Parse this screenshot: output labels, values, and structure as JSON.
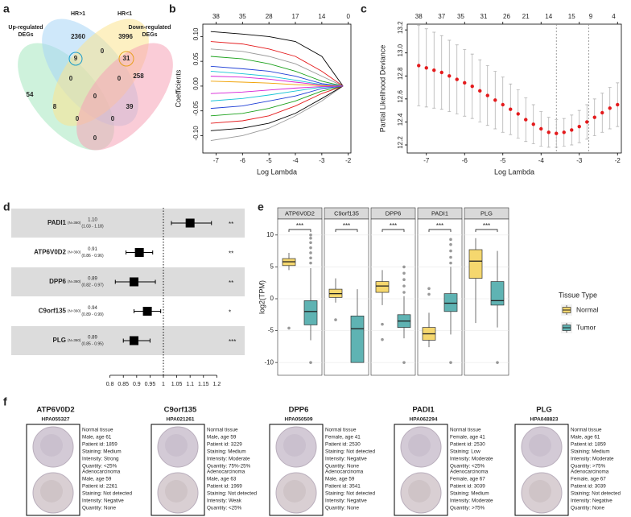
{
  "panel_labels": [
    "a",
    "b",
    "c",
    "d",
    "e",
    "f"
  ],
  "venn": {
    "sets": [
      {
        "name_lines": [
          "Up-regulated",
          "DEGs"
        ],
        "color": "#a6e8c0",
        "label_color": "#3cbf86"
      },
      {
        "name_lines": [
          "HR>1"
        ],
        "color": "#a8d6f5",
        "label_color": "#45a8e0"
      },
      {
        "name_lines": [
          "HR<1"
        ],
        "color": "#fbe48f",
        "label_color": "#f0a12a"
      },
      {
        "name_lines": [
          "Down-regulated",
          "DEGs"
        ],
        "color": "#f6a3b6",
        "label_color": "#e0508a"
      }
    ],
    "regions": [
      54,
      2360,
      3996,
      258,
      9,
      0,
      31,
      0,
      0,
      0,
      8,
      0,
      39,
      0,
      0
    ]
  },
  "chart_data": [
    {
      "type": "line",
      "x_label": "Log Lambda",
      "y_label": "Coefficients",
      "x": [
        -7.2,
        -6,
        -5,
        -4,
        -3,
        -2.2
      ],
      "series": [
        {
          "color": "#000000",
          "values": [
            0.11,
            0.105,
            0.1,
            0.09,
            0.06,
            0
          ]
        },
        {
          "color": "#e41a1c",
          "values": [
            0.09,
            0.085,
            0.075,
            0.06,
            0.03,
            0
          ]
        },
        {
          "color": "#999999",
          "values": [
            0.075,
            0.07,
            0.06,
            0.045,
            0.02,
            0
          ]
        },
        {
          "color": "#1ba11b",
          "values": [
            0.06,
            0.055,
            0.045,
            0.03,
            0.01,
            0
          ]
        },
        {
          "color": "#1f3fd6",
          "values": [
            0.04,
            0.035,
            0.03,
            0.02,
            0.005,
            0
          ]
        },
        {
          "color": "#17c3d6",
          "values": [
            0.03,
            0.025,
            0.02,
            0.012,
            0.003,
            0
          ]
        },
        {
          "color": "#d61fd6",
          "values": [
            0.02,
            0.018,
            0.014,
            0.008,
            0.002,
            0
          ]
        },
        {
          "color": "#f0a000",
          "values": [
            0.01,
            0.008,
            0.006,
            0.003,
            0.001,
            0
          ]
        },
        {
          "color": "#999999",
          "values": [
            -0.11,
            -0.1,
            -0.085,
            -0.06,
            -0.03,
            0
          ]
        },
        {
          "color": "#000000",
          "values": [
            -0.09,
            -0.085,
            -0.075,
            -0.055,
            -0.025,
            0
          ]
        },
        {
          "color": "#e41a1c",
          "values": [
            -0.075,
            -0.07,
            -0.06,
            -0.04,
            -0.015,
            0
          ]
        },
        {
          "color": "#1ba11b",
          "values": [
            -0.06,
            -0.055,
            -0.045,
            -0.03,
            -0.01,
            0
          ]
        },
        {
          "color": "#1f3fd6",
          "values": [
            -0.045,
            -0.04,
            -0.03,
            -0.02,
            -0.005,
            0
          ]
        },
        {
          "color": "#17c3d6",
          "values": [
            -0.03,
            -0.025,
            -0.018,
            -0.01,
            -0.002,
            0
          ]
        },
        {
          "color": "#d61fd6",
          "values": [
            -0.015,
            -0.012,
            -0.008,
            -0.004,
            -0.001,
            0
          ]
        }
      ],
      "xlim": [
        -7.5,
        -1.9
      ],
      "xticks": [
        -7,
        -6,
        -5,
        -4,
        -3,
        -2
      ],
      "top_labels": [
        38,
        35,
        28,
        17,
        14,
        0
      ],
      "ylim": [
        -0.135,
        0.125
      ],
      "yticks": [
        {
          "value": -0.1,
          "label": "-0.10"
        },
        -0.05,
        {
          "value": 0,
          "label": "0.00"
        },
        0.05,
        {
          "value": 0.1,
          "label": "0.10"
        }
      ]
    },
    {
      "type": "scatter",
      "x_label": "Log Lambda",
      "y_label": "Partial Likelihood Deviance",
      "color": "#e41a1c",
      "x": [
        -7.2,
        -7.0,
        -6.8,
        -6.6,
        -6.4,
        -6.2,
        -6.0,
        -5.8,
        -5.6,
        -5.4,
        -5.2,
        -5.0,
        -4.8,
        -4.6,
        -4.4,
        -4.2,
        -4.0,
        -3.8,
        -3.6,
        -3.4,
        -3.2,
        -3.0,
        -2.8,
        -2.6,
        -2.4,
        -2.2,
        -2.0
      ],
      "values": [
        12.89,
        12.87,
        12.85,
        12.83,
        12.8,
        12.77,
        12.74,
        12.71,
        12.67,
        12.63,
        12.59,
        12.55,
        12.51,
        12.47,
        12.42,
        12.38,
        12.34,
        12.31,
        12.3,
        12.31,
        12.33,
        12.36,
        12.4,
        12.44,
        12.48,
        12.52,
        12.55
      ],
      "errors": [
        0.35,
        0.34,
        0.33,
        0.32,
        0.31,
        0.3,
        0.29,
        0.28,
        0.27,
        0.26,
        0.25,
        0.24,
        0.22,
        0.21,
        0.19,
        0.17,
        0.15,
        0.13,
        0.12,
        0.12,
        0.13,
        0.14,
        0.15,
        0.16,
        0.17,
        0.18,
        0.19
      ],
      "xlim": [
        -7.5,
        -1.9
      ],
      "xticks": [
        -7,
        -6,
        -5,
        -4,
        -3,
        -2
      ],
      "ylim": [
        12.13,
        13.25
      ],
      "yticks": [
        12.2,
        12.4,
        12.6,
        12.8,
        {
          "value": 13,
          "label": "13.0"
        },
        13.2
      ],
      "top_labels": {
        "x": [
          -7.2,
          -6.6,
          -6.1,
          -5.5,
          -4.9,
          -4.4,
          -3.8,
          -3.2,
          -2.7,
          -2.1
        ],
        "labels": [
          38,
          37,
          35,
          31,
          26,
          21,
          14,
          15,
          9,
          4
        ]
      },
      "vlines": [
        -3.6,
        -2.75
      ]
    },
    {
      "type": "forest",
      "color": "#000000",
      "categories": [
        "PADI1",
        "ATP6V0D2",
        "DPP6",
        "C9orf135",
        "PLG"
      ],
      "n_labels": [
        "(N=360)",
        "(N=360)",
        "(N=360)",
        "(N=360)",
        "(N=360)"
      ],
      "values": [
        1.1,
        0.91,
        0.89,
        0.94,
        0.89
      ],
      "value_labels": [
        "1.10",
        "0.91",
        "0.89",
        "0.94",
        "0.89"
      ],
      "ci_low": [
        1.03,
        0.86,
        0.82,
        0.89,
        0.85
      ],
      "ci_high": [
        1.18,
        0.96,
        0.97,
        0.99,
        0.95
      ],
      "ci_labels": [
        "(1.03 - 1.18)",
        "(0.86 - 0.96)",
        "(0.82 - 0.97)",
        "(0.89 - 0.99)",
        "(0.85 - 0.95)"
      ],
      "significance": [
        "**",
        "**",
        "**",
        "*",
        "***"
      ],
      "reference": 1,
      "xlim": [
        0.78,
        1.22
      ],
      "xticks": [
        0.8,
        0.85,
        0.9,
        0.95,
        1,
        1.05,
        1.1,
        1.15,
        1.2
      ]
    },
    {
      "type": "box",
      "y_label": "log2(TPM)",
      "categories": [
        "ATP6V0D2",
        "C9orf135",
        "DPP6",
        "PADI1",
        "PLG"
      ],
      "significance": [
        "***",
        "***",
        "***",
        "***",
        "***"
      ],
      "legend_title": "Tissue Type",
      "legend": "right",
      "ylim": [
        -12,
        12.5
      ],
      "yticks": [
        -10,
        -5,
        0,
        5,
        10
      ],
      "series": [
        {
          "name": "Normal",
          "color": "#f5d76e",
          "boxes": [
            {
              "min": 4.5,
              "q1": 5.2,
              "median": 5.8,
              "q3": 6.3,
              "max": 7.2,
              "outliers": [
                -4.6
              ]
            },
            {
              "min": -0.6,
              "q1": 0.2,
              "median": 0.8,
              "q3": 1.5,
              "max": 3.2,
              "outliers": [
                -3.3
              ]
            },
            {
              "min": -1,
              "q1": 1,
              "median": 2,
              "q3": 2.7,
              "max": 4.5,
              "outliers": [
                -4,
                -6.4
              ]
            },
            {
              "min": -7.6,
              "q1": -6.5,
              "median": -5.5,
              "q3": -4.5,
              "max": -2.2,
              "outliers": [
                0.7,
                1.6
              ]
            },
            {
              "min": -3.8,
              "q1": 3.2,
              "median": 5.9,
              "q3": 7.7,
              "max": 9.5,
              "outliers": []
            }
          ]
        },
        {
          "name": "Tumor",
          "color": "#5fb3b3",
          "boxes": [
            {
              "min": -6.5,
              "q1": -4.1,
              "median": -2,
              "q3": -0.3,
              "max": 4.8,
              "outliers": [
                5.6,
                6.4,
                7.2,
                8,
                8.8,
                9.5,
                10,
                -10
              ]
            },
            {
              "min": -10,
              "q1": -10,
              "median": -4.7,
              "q3": -2.7,
              "max": 1.5,
              "outliers": []
            },
            {
              "min": -6.2,
              "q1": -4.5,
              "median": -3.5,
              "q3": -2.5,
              "max": 0.4,
              "outliers": [
                1,
                2,
                3,
                4,
                5,
                -10
              ]
            },
            {
              "min": -5.6,
              "q1": -2,
              "median": -0.7,
              "q3": 0.8,
              "max": 5,
              "outliers": [
                5.6,
                6.5,
                7.5,
                8.5,
                9.3,
                -10
              ]
            },
            {
              "min": -4.5,
              "q1": -1,
              "median": -0.3,
              "q3": 2.7,
              "max": 7.5,
              "outliers": [
                -10
              ]
            }
          ]
        }
      ]
    }
  ],
  "tissue_panels": [
    {
      "gene": "ATP6V0D2",
      "hpa": "HPA055327",
      "normal": [
        "Normal tissue",
        "Male, age 61",
        "Patient id: 1859",
        "Staining: Medium",
        "Intensity: Strong",
        "Quantity: <25%"
      ],
      "tumor": [
        "Adenocarcinoma",
        "Male, age 59",
        "Patient id: 2261",
        "Staining: Not detected",
        "Intensity: Negative",
        "Quantity: None"
      ]
    },
    {
      "gene": "C9orf135",
      "hpa": "HPA021261",
      "normal": [
        "Normal tissue",
        "Male, age 59",
        "Patient id: 3229",
        "Staining: Medium",
        "Intensity: Moderate",
        "Quantity: 75%-25%"
      ],
      "tumor": [
        "Adenocarcinoma",
        "Male, age 63",
        "Patient id: 1969",
        "Staining: Not detected",
        "Intensity: Weak",
        "Quantity: <25%"
      ]
    },
    {
      "gene": "DPP6",
      "hpa": "HPA050509",
      "normal": [
        "Normal tissue",
        "Female, age 41",
        "Patient id: 2530",
        "Staining: Not detected",
        "Intensity: Negative",
        "Quantity: None"
      ],
      "tumor": [
        "Adenocarcinoma",
        "Male, age 59",
        "Patient id: 3541",
        "Staining: Not detected",
        "Intensity: Negative",
        "Quantity: None"
      ]
    },
    {
      "gene": "PADI1",
      "hpa": "HPA062294",
      "normal": [
        "Normal tissue",
        "Female, age 41",
        "Patient id: 2530",
        "Staining: Low",
        "Intensity: Moderate",
        "Quantity: <25%"
      ],
      "tumor": [
        "Adenocarcinoma",
        "Female, age 67",
        "Patient id: 3039",
        "Staining: Medium",
        "Intensity: Moderate",
        "Quantity: >75%"
      ]
    },
    {
      "gene": "PLG",
      "hpa": "HPA048823",
      "normal": [
        "Normal tissue",
        "Male, age 61",
        "Patient id: 1859",
        "Staining: Medium",
        "Intensity: Moderate",
        "Quantity: >75%"
      ],
      "tumor": [
        "Adenocarcinoma",
        "Female, age 67",
        "Patient id: 3039",
        "Staining: Not detected",
        "Intensity: Negative",
        "Quantity: None"
      ]
    }
  ]
}
